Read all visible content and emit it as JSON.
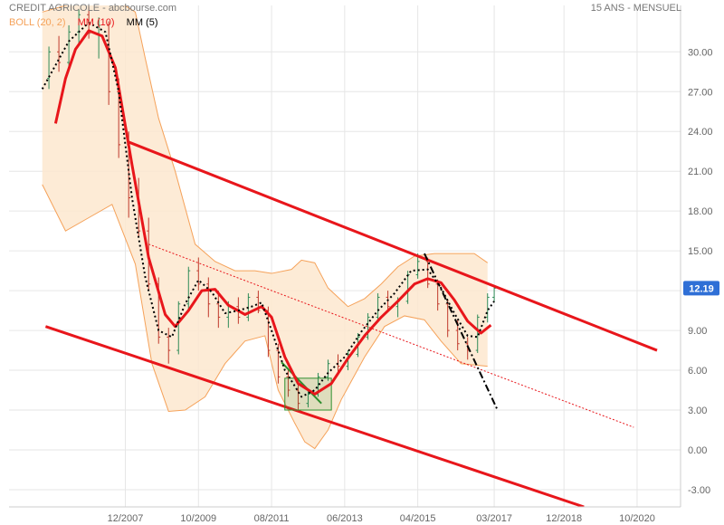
{
  "header": {
    "title": "CREDIT AGRICOLE - abcbourse.com",
    "period": "15 ANS - MENSUEL"
  },
  "legend": {
    "bollinger": "BOLL (20, 2)",
    "mm10": "MM (10)",
    "mm5": "MM (5)"
  },
  "colors": {
    "up_candle": "#2e8b57",
    "down_candle": "#c0392b",
    "mm10": "#e8161b",
    "mm5": "#000000",
    "bollinger_band": "#f5a25a",
    "bollinger_fill": "#fde7cf",
    "channel": "#e8161b",
    "last_price_badge": "#2f6fd6",
    "pattern_box": "#2f8f2f"
  },
  "chart_data": {
    "type": "candlestick",
    "x_axis_ticks": [
      "12/2007",
      "10/2009",
      "08/2011",
      "06/2013",
      "04/2015",
      "03/2017",
      "12/2018",
      "10/2020"
    ],
    "y_axis_ticks": [
      "30.00",
      "27.00",
      "24.00",
      "21.00",
      "18.00",
      "15.00",
      "12.00",
      "9.00",
      "6.00",
      "3.00",
      "0.00",
      "-3.00"
    ],
    "ylim": [
      -4.3,
      33.5
    ],
    "grid": true,
    "last_price": "12.19",
    "series": [
      {
        "name": "MM (10)",
        "points": [
          [
            "2006-03",
            24.6
          ],
          [
            "2006-06",
            28.0
          ],
          [
            "2006-09",
            30.2
          ],
          [
            "2007-01",
            31.6
          ],
          [
            "2007-05",
            31.2
          ],
          [
            "2007-09",
            28.8
          ],
          [
            "2008-02",
            21.5
          ],
          [
            "2008-07",
            14.5
          ],
          [
            "2008-12",
            10.2
          ],
          [
            "2009-03",
            9.3
          ],
          [
            "2009-07",
            10.5
          ],
          [
            "2009-11",
            12.0
          ],
          [
            "2010-03",
            12.1
          ],
          [
            "2010-07",
            10.9
          ],
          [
            "2010-12",
            10.2
          ],
          [
            "2011-05",
            10.8
          ],
          [
            "2011-08",
            10.0
          ],
          [
            "2011-12",
            7.0
          ],
          [
            "2012-04",
            5.0
          ],
          [
            "2012-09",
            4.2
          ],
          [
            "2013-02",
            5.0
          ],
          [
            "2013-07",
            6.9
          ],
          [
            "2013-12",
            8.6
          ],
          [
            "2014-05",
            10.0
          ],
          [
            "2014-10",
            11.2
          ],
          [
            "2015-03",
            12.5
          ],
          [
            "2015-07",
            12.9
          ],
          [
            "2015-11",
            12.6
          ],
          [
            "2016-03",
            11.3
          ],
          [
            "2016-07",
            9.7
          ],
          [
            "2016-11",
            8.8
          ],
          [
            "2017-02",
            9.4
          ]
        ]
      },
      {
        "name": "MM (5)",
        "points": [
          [
            "2005-11",
            27.2
          ],
          [
            "2006-03",
            29.0
          ],
          [
            "2006-07",
            30.8
          ],
          [
            "2007-01",
            32.2
          ],
          [
            "2007-06",
            31.5
          ],
          [
            "2007-10",
            27.0
          ],
          [
            "2008-02",
            19.0
          ],
          [
            "2008-06",
            13.0
          ],
          [
            "2008-10",
            9.0
          ],
          [
            "2009-02",
            8.5
          ],
          [
            "2009-06",
            11.0
          ],
          [
            "2009-10",
            12.8
          ],
          [
            "2010-02",
            11.9
          ],
          [
            "2010-06",
            10.3
          ],
          [
            "2010-10",
            10.5
          ],
          [
            "2011-02",
            10.8
          ],
          [
            "2011-05",
            11.1
          ],
          [
            "2011-08",
            9.0
          ],
          [
            "2011-12",
            6.0
          ],
          [
            "2012-05",
            4.0
          ],
          [
            "2012-09",
            4.5
          ],
          [
            "2013-01",
            5.8
          ],
          [
            "2013-06",
            7.0
          ],
          [
            "2013-11",
            8.9
          ],
          [
            "2014-04",
            10.5
          ],
          [
            "2014-09",
            11.8
          ],
          [
            "2015-02",
            13.5
          ],
          [
            "2015-07",
            13.6
          ],
          [
            "2015-11",
            12.2
          ],
          [
            "2016-03",
            10.3
          ],
          [
            "2016-07",
            8.6
          ],
          [
            "2016-10",
            8.5
          ],
          [
            "2017-01",
            10.5
          ],
          [
            "2017-03",
            11.2
          ]
        ]
      },
      {
        "name": "BOLL (20, 2) upper",
        "points": [
          [
            "2005-11",
            33.0
          ],
          [
            "2006-06",
            33.5
          ],
          [
            "2007-02",
            34.0
          ],
          [
            "2007-10",
            33.8
          ],
          [
            "2008-03",
            33.0
          ],
          [
            "2008-06",
            29.5
          ],
          [
            "2008-10",
            25.0
          ],
          [
            "2009-03",
            21.0
          ],
          [
            "2009-09",
            15.5
          ],
          [
            "2010-03",
            14.2
          ],
          [
            "2010-09",
            13.5
          ],
          [
            "2011-03",
            13.5
          ],
          [
            "2011-08",
            13.3
          ],
          [
            "2012-02",
            13.6
          ],
          [
            "2012-05",
            14.3
          ],
          [
            "2012-09",
            14.1
          ],
          [
            "2013-01",
            12.2
          ],
          [
            "2013-07",
            10.8
          ],
          [
            "2013-12",
            11.4
          ],
          [
            "2014-05",
            12.5
          ],
          [
            "2014-10",
            13.8
          ],
          [
            "2015-03",
            14.6
          ],
          [
            "2015-09",
            14.8
          ],
          [
            "2016-03",
            14.8
          ],
          [
            "2016-09",
            14.8
          ],
          [
            "2017-01",
            14.1
          ]
        ]
      },
      {
        "name": "BOLL (20, 2) lower",
        "points": [
          [
            "2005-11",
            20.0
          ],
          [
            "2006-06",
            16.5
          ],
          [
            "2007-01",
            17.5
          ],
          [
            "2007-08",
            18.5
          ],
          [
            "2008-03",
            14.0
          ],
          [
            "2008-08",
            6.5
          ],
          [
            "2009-01",
            2.9
          ],
          [
            "2009-06",
            3.0
          ],
          [
            "2009-12",
            4.0
          ],
          [
            "2010-06",
            6.5
          ],
          [
            "2010-12",
            8.2
          ],
          [
            "2011-06",
            8.6
          ],
          [
            "2011-10",
            4.5
          ],
          [
            "2012-03",
            2.0
          ],
          [
            "2012-06",
            0.6
          ],
          [
            "2012-09",
            0.1
          ],
          [
            "2013-01",
            1.5
          ],
          [
            "2013-05",
            3.8
          ],
          [
            "2013-12",
            7.0
          ],
          [
            "2014-06",
            9.3
          ],
          [
            "2014-12",
            10.1
          ],
          [
            "2015-06",
            9.8
          ],
          [
            "2015-11",
            8.2
          ],
          [
            "2016-05",
            6.5
          ],
          [
            "2017-01",
            6.3
          ]
        ]
      }
    ],
    "trend_lines": [
      {
        "name": "channel upper",
        "style": "solid-red-thick",
        "from": [
          "2008-01",
          23.2
        ],
        "to": [
          "2021-04",
          7.5
        ]
      },
      {
        "name": "channel lower",
        "style": "solid-red-thick",
        "from": [
          "2005-12",
          9.3
        ],
        "to": [
          "2019-06",
          -4.3
        ]
      },
      {
        "name": "channel median",
        "style": "dotted-red-thin",
        "from": [
          "2008-06",
          15.6
        ],
        "to": [
          "2020-09",
          1.7
        ]
      },
      {
        "name": "downtrend",
        "style": "dash-dot-black",
        "from": [
          "2015-06",
          14.8
        ],
        "to": [
          "2017-04",
          3.0
        ]
      },
      {
        "name": "falling wedge",
        "style": "solid-green",
        "from": [
          "2011-11",
          6.6
        ],
        "to": [
          "2012-11",
          3.5
        ]
      }
    ],
    "annotations": [
      {
        "name": "consolidation box",
        "from": [
          "2011-12",
          5.4
        ],
        "to": [
          "2013-02",
          3.0
        ]
      }
    ],
    "candles": [
      [
        "2006-01",
        28.0,
        30.4,
        27.2,
        30.0
      ],
      [
        "2006-04",
        30.0,
        31.2,
        28.5,
        29.2
      ],
      [
        "2006-07",
        29.2,
        32.0,
        28.6,
        31.5
      ],
      [
        "2006-10",
        31.5,
        33.2,
        30.5,
        32.8
      ],
      [
        "2007-01",
        32.8,
        33.4,
        31.0,
        31.4
      ],
      [
        "2007-04",
        31.4,
        32.6,
        29.5,
        32.0
      ],
      [
        "2007-07",
        32.0,
        32.3,
        26.0,
        27.0
      ],
      [
        "2007-10",
        27.0,
        28.0,
        22.0,
        23.0
      ],
      [
        "2008-01",
        23.0,
        24.0,
        17.5,
        19.0
      ],
      [
        "2008-04",
        19.0,
        20.5,
        16.0,
        16.5
      ],
      [
        "2008-07",
        16.5,
        17.5,
        12.0,
        12.5
      ],
      [
        "2008-10",
        12.5,
        13.0,
        8.0,
        8.5
      ],
      [
        "2009-01",
        8.5,
        9.2,
        6.5,
        7.5
      ],
      [
        "2009-04",
        7.5,
        11.2,
        7.2,
        11.0
      ],
      [
        "2009-07",
        11.0,
        13.8,
        10.5,
        13.5
      ],
      [
        "2009-10",
        13.5,
        14.5,
        12.0,
        12.5
      ],
      [
        "2010-01",
        12.5,
        13.0,
        10.0,
        11.0
      ],
      [
        "2010-04",
        11.0,
        12.0,
        9.2,
        10.0
      ],
      [
        "2010-07",
        10.0,
        11.2,
        9.2,
        10.8
      ],
      [
        "2010-10",
        10.8,
        11.5,
        9.5,
        10.0
      ],
      [
        "2011-01",
        10.0,
        11.8,
        9.7,
        11.5
      ],
      [
        "2011-04",
        11.5,
        12.0,
        10.3,
        10.5
      ],
      [
        "2011-07",
        10.5,
        10.8,
        7.0,
        7.5
      ],
      [
        "2011-10",
        7.5,
        8.0,
        5.0,
        5.5
      ],
      [
        "2012-01",
        5.5,
        6.0,
        4.0,
        4.5
      ],
      [
        "2012-04",
        4.5,
        5.2,
        3.0,
        3.5
      ],
      [
        "2012-07",
        3.5,
        4.5,
        3.2,
        4.2
      ],
      [
        "2012-10",
        4.2,
        5.8,
        4.0,
        5.5
      ],
      [
        "2013-01",
        5.5,
        6.8,
        5.2,
        6.5
      ],
      [
        "2013-04",
        6.5,
        7.2,
        5.8,
        6.3
      ],
      [
        "2013-07",
        6.3,
        7.5,
        6.0,
        7.2
      ],
      [
        "2013-10",
        7.2,
        8.8,
        7.0,
        8.5
      ],
      [
        "2014-01",
        8.5,
        10.3,
        8.3,
        10.0
      ],
      [
        "2014-04",
        10.0,
        11.8,
        9.8,
        11.5
      ],
      [
        "2014-07",
        11.5,
        12.0,
        10.5,
        10.8
      ],
      [
        "2014-10",
        10.8,
        11.5,
        10.0,
        11.2
      ],
      [
        "2015-01",
        11.2,
        13.5,
        11.0,
        13.2
      ],
      [
        "2015-04",
        13.2,
        14.8,
        12.9,
        14.2
      ],
      [
        "2015-07",
        14.2,
        14.5,
        12.2,
        12.5
      ],
      [
        "2015-10",
        12.5,
        12.8,
        10.5,
        11.0
      ],
      [
        "2016-01",
        11.0,
        11.3,
        8.5,
        9.0
      ],
      [
        "2016-04",
        9.0,
        9.8,
        7.5,
        8.0
      ],
      [
        "2016-07",
        8.0,
        8.5,
        6.8,
        7.5
      ],
      [
        "2016-10",
        7.5,
        10.2,
        7.3,
        10.0
      ],
      [
        "2017-01",
        10.0,
        11.8,
        9.6,
        11.5
      ],
      [
        "2017-03",
        11.5,
        12.4,
        11.2,
        12.19
      ]
    ]
  }
}
